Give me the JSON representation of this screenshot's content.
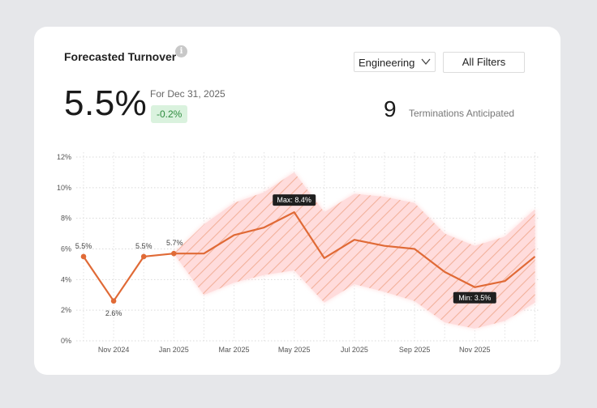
{
  "card": {
    "title": "Forecasted Turnover",
    "info_icon": "info-icon",
    "department_select": {
      "value": "Engineering",
      "icon": "chevron-down-icon"
    },
    "filters_button": "All Filters",
    "kpi": {
      "value": "5.5%",
      "date_label": "For Dec 31, 2025",
      "delta": "-0.2%"
    },
    "terminations": {
      "count": "9",
      "label": "Terminations Anticipated"
    }
  },
  "colors": {
    "line": "#e06a36",
    "band_fill": "#ffdcdc",
    "band_stripes": "#f0a98f",
    "delta_bg": "#daf2de",
    "delta_text": "#2e8b3e",
    "tooltip_bg": "#1f1f1f"
  },
  "chart_data": {
    "type": "line",
    "title": "",
    "xlabel": "",
    "ylabel": "",
    "ylim": [
      0,
      12
    ],
    "y_ticks": [
      "0%",
      "2%",
      "4%",
      "6%",
      "8%",
      "10%",
      "12%"
    ],
    "x_tick_labels": [
      "Nov 2024",
      "Jan 2025",
      "Mar 2025",
      "May 2025",
      "Jul 2025",
      "Sep 2025",
      "Nov 2025"
    ],
    "grid": true,
    "x": [
      "2024-10-01",
      "2024-11-01",
      "2024-12-01",
      "2025-01-01",
      "2025-02-01",
      "2025-03-01",
      "2025-04-01",
      "2025-05-01",
      "2025-06-01",
      "2025-07-01",
      "2025-08-01",
      "2025-09-01",
      "2025-10-01",
      "2025-11-01",
      "2025-12-01",
      "2026-01-01"
    ],
    "series": [
      {
        "values": [
          5.5,
          2.6,
          5.5,
          5.7,
          5.7,
          6.9,
          7.4,
          8.4,
          5.4,
          6.6,
          6.2,
          6.0,
          4.5,
          3.5,
          3.9,
          5.5
        ]
      }
    ],
    "band_lower": [
      null,
      null,
      null,
      5.7,
      3.0,
      3.8,
      4.3,
      4.6,
      2.5,
      3.7,
      3.2,
      2.6,
      1.2,
      0.8,
      1.3,
      2.5
    ],
    "band_upper": [
      null,
      null,
      null,
      5.7,
      7.6,
      9.0,
      9.7,
      11.0,
      8.4,
      9.6,
      9.4,
      9.0,
      7.0,
      6.2,
      6.8,
      8.6
    ],
    "actual_count": 4,
    "data_labels": [
      {
        "index": 0,
        "text": "5.5%"
      },
      {
        "index": 1,
        "text": "2.6%"
      },
      {
        "index": 2,
        "text": "5.5%"
      },
      {
        "index": 3,
        "text": "5.7%"
      }
    ],
    "annotations": [
      {
        "index": 7,
        "text": "Max: 8.4%"
      },
      {
        "index": 13,
        "text": "Min: 3.5%"
      }
    ]
  }
}
